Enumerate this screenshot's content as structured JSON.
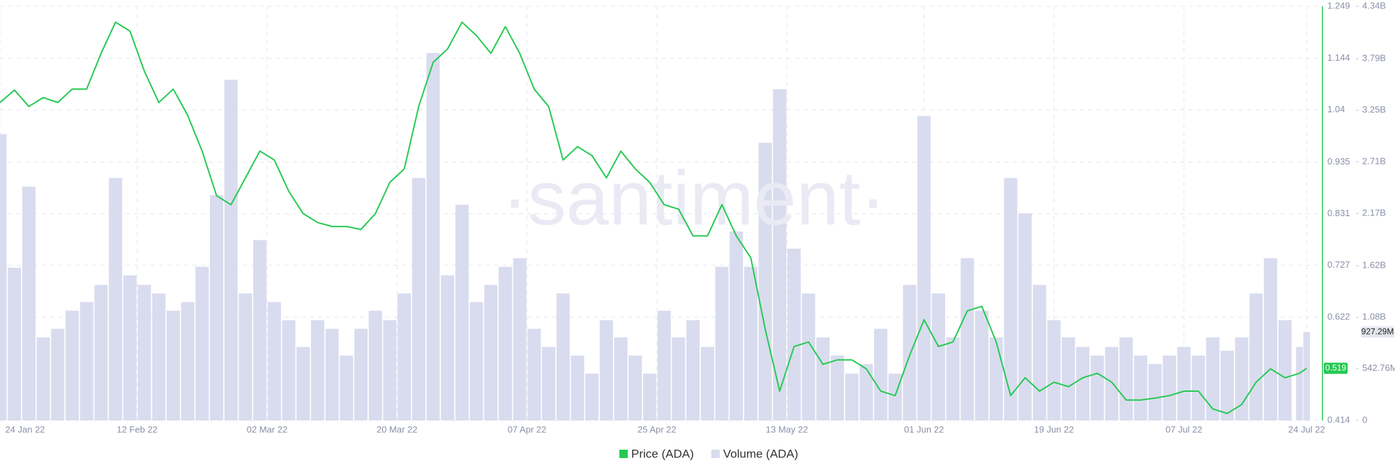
{
  "chart_data": {
    "type": "line-bar",
    "watermark": "·santiment·",
    "x": [
      "2022-01-24",
      "2022-01-26",
      "2022-01-28",
      "2022-01-30",
      "2022-02-01",
      "2022-02-03",
      "2022-02-05",
      "2022-02-07",
      "2022-02-09",
      "2022-02-11",
      "2022-02-13",
      "2022-02-15",
      "2022-02-17",
      "2022-02-19",
      "2022-02-21",
      "2022-02-23",
      "2022-02-25",
      "2022-02-27",
      "2022-03-01",
      "2022-03-03",
      "2022-03-05",
      "2022-03-07",
      "2022-03-09",
      "2022-03-11",
      "2022-03-13",
      "2022-03-15",
      "2022-03-17",
      "2022-03-19",
      "2022-03-21",
      "2022-03-23",
      "2022-03-25",
      "2022-03-27",
      "2022-03-29",
      "2022-03-31",
      "2022-04-02",
      "2022-04-04",
      "2022-04-06",
      "2022-04-08",
      "2022-04-10",
      "2022-04-12",
      "2022-04-14",
      "2022-04-16",
      "2022-04-18",
      "2022-04-20",
      "2022-04-22",
      "2022-04-24",
      "2022-04-26",
      "2022-04-28",
      "2022-04-30",
      "2022-05-02",
      "2022-05-04",
      "2022-05-06",
      "2022-05-08",
      "2022-05-10",
      "2022-05-12",
      "2022-05-14",
      "2022-05-16",
      "2022-05-18",
      "2022-05-20",
      "2022-05-22",
      "2022-05-24",
      "2022-05-26",
      "2022-05-28",
      "2022-05-30",
      "2022-06-01",
      "2022-06-03",
      "2022-06-05",
      "2022-06-07",
      "2022-06-09",
      "2022-06-11",
      "2022-06-13",
      "2022-06-15",
      "2022-06-17",
      "2022-06-19",
      "2022-06-21",
      "2022-06-23",
      "2022-06-25",
      "2022-06-27",
      "2022-06-29",
      "2022-07-01",
      "2022-07-03",
      "2022-07-05",
      "2022-07-07",
      "2022-07-09",
      "2022-07-11",
      "2022-07-13",
      "2022-07-15",
      "2022-07-17",
      "2022-07-19",
      "2022-07-21",
      "2022-07-23",
      "2022-07-24"
    ],
    "xlim": [
      "2022-01-24",
      "2022-07-26"
    ],
    "xticks": [
      {
        "value": "2022-01-24",
        "label": "24 Jan 22"
      },
      {
        "value": "2022-02-12",
        "label": "12 Feb 22"
      },
      {
        "value": "2022-03-02",
        "label": "02 Mar 22"
      },
      {
        "value": "2022-03-20",
        "label": "20 Mar 22"
      },
      {
        "value": "2022-04-07",
        "label": "07 Apr 22"
      },
      {
        "value": "2022-04-25",
        "label": "25 Apr 22"
      },
      {
        "value": "2022-05-13",
        "label": "13 May 22"
      },
      {
        "value": "2022-06-01",
        "label": "01 Jun 22"
      },
      {
        "value": "2022-06-19",
        "label": "19 Jun 22"
      },
      {
        "value": "2022-07-07",
        "label": "07 Jul 22"
      },
      {
        "value": "2022-07-24",
        "label": "24 Jul 22"
      }
    ],
    "ylim": [
      0.414,
      1.249
    ],
    "yticks": [
      1.249,
      1.144,
      1.04,
      0.935,
      0.831,
      0.727,
      0.622,
      0.414
    ],
    "y2lim": [
      0,
      4340000000
    ],
    "y2ticks": [
      {
        "value": 4340000000,
        "label": "4.34B"
      },
      {
        "value": 3790000000,
        "label": "3.79B"
      },
      {
        "value": 3250000000,
        "label": "3.25B"
      },
      {
        "value": 2710000000,
        "label": "2.71B"
      },
      {
        "value": 2170000000,
        "label": "2.17B"
      },
      {
        "value": 1620000000,
        "label": "1.62B"
      },
      {
        "value": 1080000000,
        "label": "1.08B"
      },
      {
        "value": 542760000,
        "label": "542.76M"
      },
      0
    ],
    "grid": true,
    "series": [
      {
        "name": "Price (ADA)",
        "color": "#26c953",
        "kind": "line",
        "last_label": "0.519",
        "values": [
          1.055,
          1.08,
          1.047,
          1.065,
          1.055,
          1.082,
          1.082,
          1.154,
          1.217,
          1.199,
          1.118,
          1.055,
          1.082,
          1.029,
          0.957,
          0.867,
          0.849,
          0.903,
          0.957,
          0.939,
          0.876,
          0.831,
          0.813,
          0.805,
          0.805,
          0.799,
          0.831,
          0.894,
          0.921,
          1.047,
          1.136,
          1.163,
          1.217,
          1.19,
          1.154,
          1.208,
          1.154,
          1.082,
          1.047,
          0.939,
          0.966,
          0.948,
          0.903,
          0.957,
          0.921,
          0.894,
          0.849,
          0.84,
          0.786,
          0.786,
          0.849,
          0.786,
          0.742,
          0.598,
          0.473,
          0.563,
          0.572,
          0.527,
          0.536,
          0.536,
          0.518,
          0.473,
          0.464,
          0.545,
          0.617,
          0.563,
          0.572,
          0.635,
          0.644,
          0.572,
          0.464,
          0.5,
          0.473,
          0.491,
          0.482,
          0.5,
          0.509,
          0.491,
          0.455,
          0.455,
          0.459,
          0.464,
          0.473,
          0.473,
          0.437,
          0.428,
          0.446,
          0.491,
          0.518,
          0.5,
          0.509,
          0.519
        ]
      },
      {
        "name": "Volume (ADA)",
        "color": "#d9dcee",
        "kind": "bar",
        "axis": "y2",
        "last_label": "927.29M",
        "values": [
          3000000000.0,
          1600000000.0,
          2450000000.0,
          870000000.0,
          960000000.0,
          1150000000.0,
          1240000000.0,
          1420000000.0,
          2540000000.0,
          1520000000.0,
          1420000000.0,
          1330000000.0,
          1150000000.0,
          1240000000.0,
          1610000000.0,
          2360000000.0,
          3570000000.0,
          1330000000.0,
          1890000000.0,
          1240000000.0,
          1050000000.0,
          770000000.0,
          1050000000.0,
          960000000.0,
          680000000.0,
          960000000.0,
          1150000000.0,
          1050000000.0,
          1330000000.0,
          2540000000.0,
          3850000000.0,
          1520000000.0,
          2260000000.0,
          1240000000.0,
          1420000000.0,
          1610000000.0,
          1700000000.0,
          960000000.0,
          770000000.0,
          1330000000.0,
          680000000.0,
          490000000.0,
          1050000000.0,
          870000000.0,
          680000000.0,
          490000000.0,
          1150000000.0,
          870000000.0,
          1050000000.0,
          770000000.0,
          1610000000.0,
          1980000000.0,
          1610000000.0,
          2910000000.0,
          3470000000.0,
          1800000000.0,
          1330000000.0,
          870000000.0,
          680000000.0,
          490000000.0,
          590000000.0,
          960000000.0,
          490000000.0,
          1420000000.0,
          3190000000.0,
          1330000000.0,
          870000000.0,
          1700000000.0,
          1150000000.0,
          870000000.0,
          2540000000.0,
          2170000000.0,
          1420000000.0,
          1050000000.0,
          870000000.0,
          770000000.0,
          680000000.0,
          770000000.0,
          870000000.0,
          680000000.0,
          590000000.0,
          680000000.0,
          770000000.0,
          680000000.0,
          870000000.0,
          730000000.0,
          870000000.0,
          1330000000.0,
          1700000000.0,
          1050000000.0,
          770000000.0,
          927290000
        ]
      }
    ]
  }
}
